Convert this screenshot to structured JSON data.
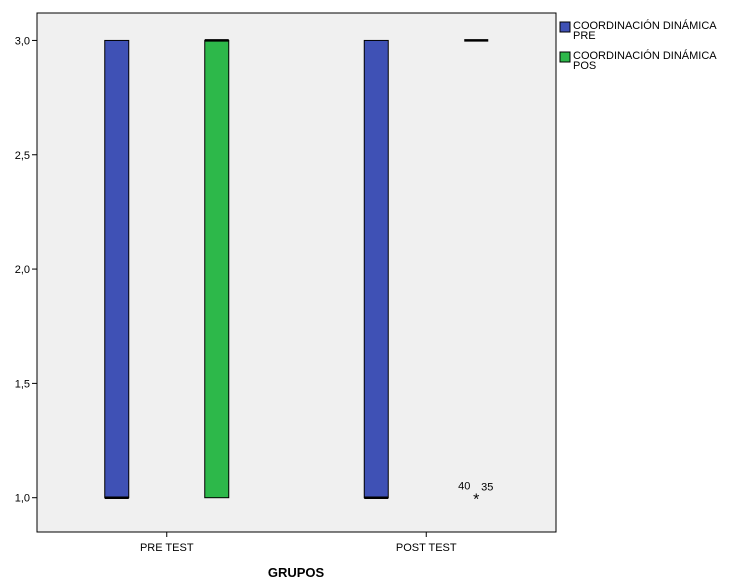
{
  "chart_data": {
    "type": "boxplot",
    "xlabel": "GRUPOS",
    "ylabel": "",
    "categories": [
      "PRE TEST",
      "POST TEST"
    ],
    "y_ticks": [
      1.0,
      1.5,
      2.0,
      2.5,
      3.0
    ],
    "y_tick_labels": [
      "1,0",
      "1,5",
      "2,0",
      "2,5",
      "3,0"
    ],
    "ylim": [
      0.85,
      3.12
    ],
    "legend_position": "right",
    "series": [
      {
        "name": "COORDINACIÓN DINÁMICA PRE",
        "color": "#3f51b5",
        "boxes": [
          {
            "category": "PRE TEST",
            "q1": 1.0,
            "median": 1.0,
            "q3": 3.0
          },
          {
            "category": "POST TEST",
            "q1": 1.0,
            "median": 1.0,
            "q3": 3.0
          }
        ]
      },
      {
        "name": "COORDINACIÓN DINÁMICA POS",
        "color": "#2db84a",
        "boxes": [
          {
            "category": "PRE TEST",
            "q1": 1.0,
            "median": 3.0,
            "q3": 3.0
          },
          {
            "category": "POST TEST",
            "q1": 3.0,
            "median": 3.0,
            "q3": 3.0
          }
        ]
      }
    ],
    "outliers": [
      {
        "series": "COORDINACIÓN DINÁMICA POS",
        "category": "POST TEST",
        "y": 1.0,
        "marker": "*",
        "labels": [
          "40",
          "35"
        ]
      }
    ]
  }
}
